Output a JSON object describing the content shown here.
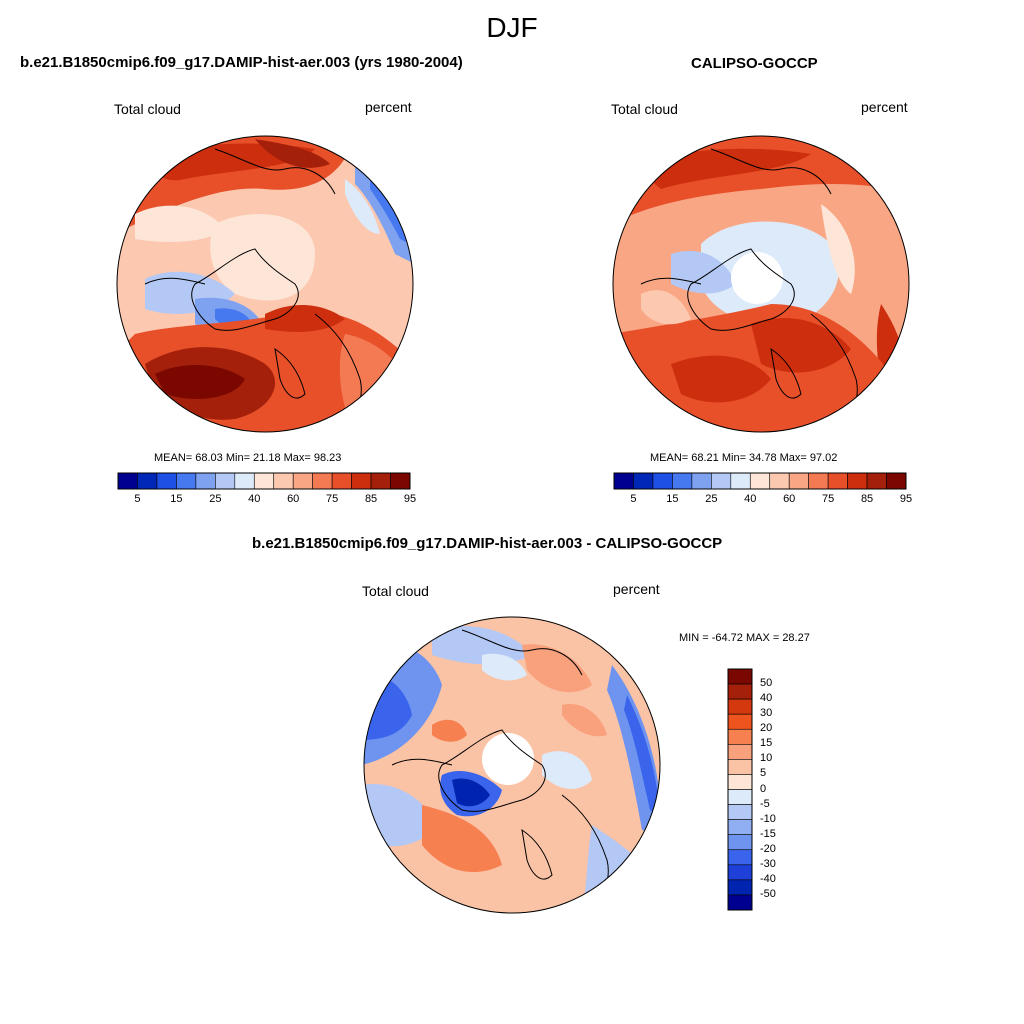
{
  "figure": {
    "season": "DJF"
  },
  "panels": {
    "model": {
      "title": "b.e21.B1850cmip6.f09_g17.DAMIP-hist-aer.003 (yrs 1980-2004)",
      "variable": "Total cloud",
      "units": "percent",
      "stats": "MEAN=  68.03  Min=  21.18  Max=  98.23",
      "colorbar_labels": [
        "5",
        "15",
        "25",
        "40",
        "60",
        "75",
        "85",
        "95"
      ]
    },
    "obs": {
      "title": "CALIPSO-GOCCP",
      "variable": "Total cloud",
      "units": "percent",
      "stats": "MEAN=  68.21  Min=  34.78  Max=  97.02",
      "colorbar_labels": [
        "5",
        "15",
        "25",
        "40",
        "60",
        "75",
        "85",
        "95"
      ]
    },
    "diff": {
      "title": "b.e21.B1850cmip6.f09_g17.DAMIP-hist-aer.003 - CALIPSO-GOCCP",
      "variable": "Total cloud",
      "units": "percent",
      "stats": "MIN = -64.72 MAX =  28.27",
      "colorbar_labels": [
        "50",
        "40",
        "30",
        "20",
        "15",
        "10",
        "5",
        "0",
        "-5",
        "-10",
        "-15",
        "-20",
        "-30",
        "-40",
        "-50"
      ]
    }
  },
  "colors": {
    "abs_scale": [
      "#000090",
      "#0028b8",
      "#1e50e6",
      "#4678f0",
      "#7ea2f0",
      "#b4c8f5",
      "#dceafa",
      "#fde6d8",
      "#fcc8b0",
      "#f9a684",
      "#f47a54",
      "#e8502a",
      "#cc2e0e",
      "#a4200a",
      "#7a0800"
    ],
    "diff_scale": [
      "#7a0800",
      "#a4200a",
      "#d4380e",
      "#f0541e",
      "#f78050",
      "#f9a07c",
      "#fbc3a6",
      "#fde6d8",
      "#dceafa",
      "#b4c8f5",
      "#90aef2",
      "#6e94f0",
      "#3a64ec",
      "#1e40d8",
      "#0024b0",
      "#000090"
    ]
  }
}
